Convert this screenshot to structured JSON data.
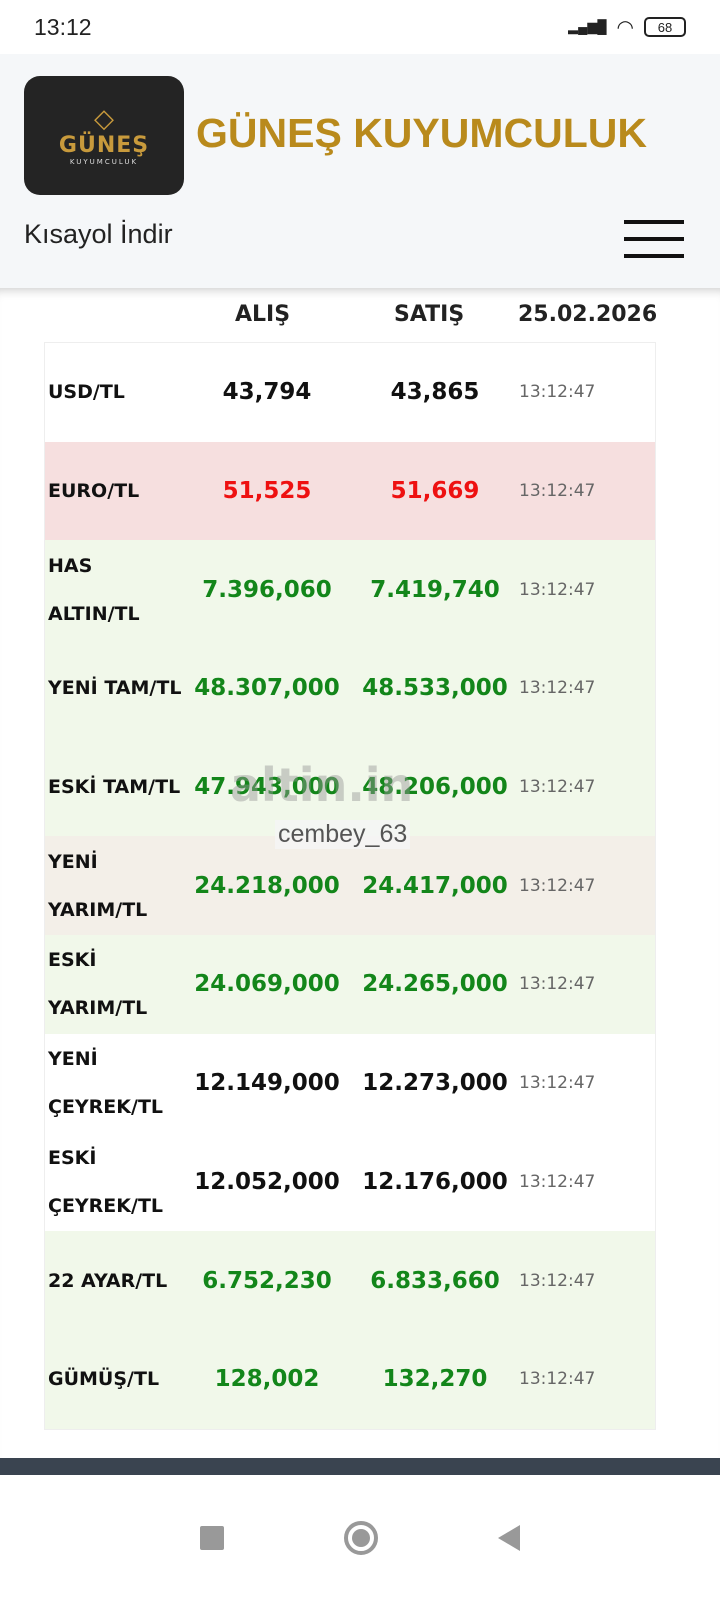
{
  "status_bar": {
    "time": "13:12",
    "battery": "68"
  },
  "header": {
    "logo_text": "GÜNEŞ",
    "logo_sub": "KUYUMCULUK",
    "brand": "GÜNEŞ KUYUMCULUK",
    "shortcut": "Kısayol İndir"
  },
  "table": {
    "headers": {
      "buy": "ALIŞ",
      "sell": "SATIŞ",
      "date": "25.02.2026"
    },
    "rows": [
      {
        "name": "USD/TL",
        "buy": "43,794",
        "sell": "43,865",
        "time": "13:12:47",
        "bg": "#ffffff",
        "color": "#111111"
      },
      {
        "name": "EURO/TL",
        "buy": "51,525",
        "sell": "51,669",
        "time": "13:12:47",
        "bg": "#f6dfdf",
        "color": "#ee1111"
      },
      {
        "name": "HAS ALTIN/TL",
        "buy": "7.396,060",
        "sell": "7.419,740",
        "time": "13:12:47",
        "bg": "#f1f8ea",
        "color": "#13861a"
      },
      {
        "name": "YENİ TAM/TL",
        "buy": "48.307,000",
        "sell": "48.533,000",
        "time": "13:12:47",
        "bg": "#f1f8ea",
        "color": "#13861a"
      },
      {
        "name": "ESKİ TAM/TL",
        "buy": "47.943,000",
        "sell": "48.206,000",
        "time": "13:12:47",
        "bg": "#f1f8ea",
        "color": "#13861a"
      },
      {
        "name": "YENİ YARIM/TL",
        "buy": "24.218,000",
        "sell": "24.417,000",
        "time": "13:12:47",
        "bg": "#f3efe8",
        "color": "#13861a"
      },
      {
        "name": "ESKİ YARIM/TL",
        "buy": "24.069,000",
        "sell": "24.265,000",
        "time": "13:12:47",
        "bg": "#f1f8ea",
        "color": "#13861a"
      },
      {
        "name": "YENİ ÇEYREK/TL",
        "buy": "12.149,000",
        "sell": "12.273,000",
        "time": "13:12:47",
        "bg": "#ffffff",
        "color": "#111111"
      },
      {
        "name": "ESKİ ÇEYREK/TL",
        "buy": "12.052,000",
        "sell": "12.176,000",
        "time": "13:12:47",
        "bg": "#ffffff",
        "color": "#111111"
      },
      {
        "name": "22 AYAR/TL",
        "buy": "6.752,230",
        "sell": "6.833,660",
        "time": "13:12:47",
        "bg": "#f1f8ea",
        "color": "#13861a"
      },
      {
        "name": "GÜMÜŞ/TL",
        "buy": "128,002",
        "sell": "132,270",
        "time": "13:12:47",
        "bg": "#f1f8ea",
        "color": "#13861a"
      }
    ]
  },
  "watermark": {
    "logo": "altin.in",
    "user": "cembey_63"
  }
}
